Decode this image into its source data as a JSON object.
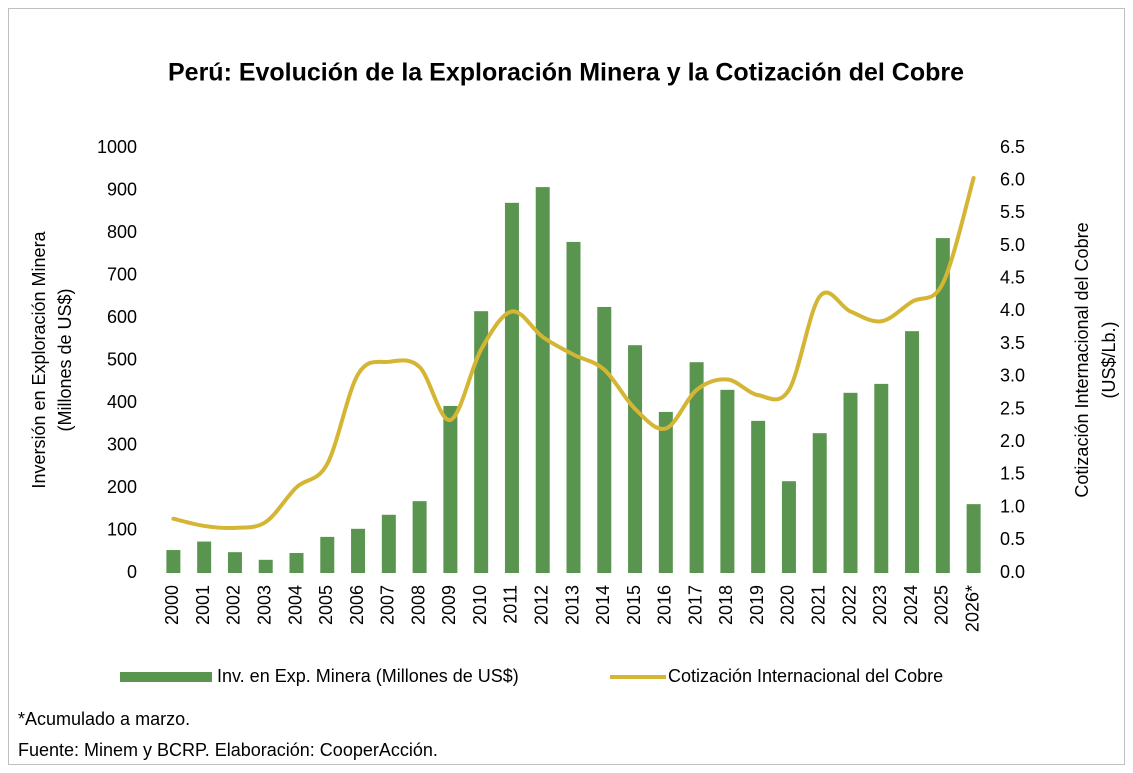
{
  "chart_data": {
    "type": "bar",
    "title": "Perú: Evolución de la Exploración Minera y la Cotización del Cobre",
    "ylabel": [
      "Inversión en Exploración Minera",
      "(Millones de US$)"
    ],
    "y2label": [
      "Cotización Internacional del Cobre",
      "(US$/Lb.)"
    ],
    "categories": [
      "2000",
      "2001",
      "2002",
      "2003",
      "2004",
      "2005",
      "2006",
      "2007",
      "2008",
      "2009",
      "2010",
      "2011",
      "2012",
      "2013",
      "2014",
      "2015",
      "2016",
      "2017",
      "2018",
      "2019",
      "2020",
      "2021",
      "2022",
      "2023",
      "2024",
      "2025",
      "2026*"
    ],
    "series": [
      {
        "name": "Inv. en Exp. Minera (Millones de US$)",
        "type": "bar",
        "axis": "y",
        "color": "#5a9550",
        "values": [
          54,
          74,
          49,
          31,
          47,
          85,
          104,
          137,
          169,
          393,
          616,
          871,
          908,
          779,
          626,
          536,
          379,
          496,
          431,
          358,
          216,
          329,
          424,
          445,
          569,
          788,
          162
        ]
      },
      {
        "name": "Cotización Internacional del Cobre",
        "type": "line",
        "axis": "y2",
        "color": "#d4b534",
        "values": [
          0.83,
          0.72,
          0.69,
          0.78,
          1.31,
          1.67,
          3.04,
          3.23,
          3.15,
          2.34,
          3.42,
          4.0,
          3.61,
          3.34,
          3.11,
          2.51,
          2.21,
          2.8,
          2.96,
          2.72,
          2.8,
          4.23,
          4.0,
          3.85,
          4.15,
          4.43,
          6.04
        ]
      }
    ],
    "ylim": [
      0,
      1000
    ],
    "yticks": [
      0,
      100,
      200,
      300,
      400,
      500,
      600,
      700,
      800,
      900,
      1000
    ],
    "y2lim": [
      0,
      6.5
    ],
    "y2ticks": [
      {
        "value": 0,
        "label": "0.0"
      },
      0.5,
      {
        "value": 1,
        "label": "1.0"
      },
      1.5,
      {
        "value": 2,
        "label": "2.0"
      },
      2.5,
      {
        "value": 3,
        "label": "3.0"
      },
      3.5,
      {
        "value": 4,
        "label": "4.0"
      },
      4.5,
      {
        "value": 5,
        "label": "5.0"
      },
      5.5,
      {
        "value": 6,
        "label": "6.0"
      },
      6.5
    ],
    "grid": false,
    "legend": "bottom",
    "notes": [
      "*Acumulado a marzo.",
      "Fuente: Minem y BCRP. Elaboración: CooperAcción."
    ]
  }
}
